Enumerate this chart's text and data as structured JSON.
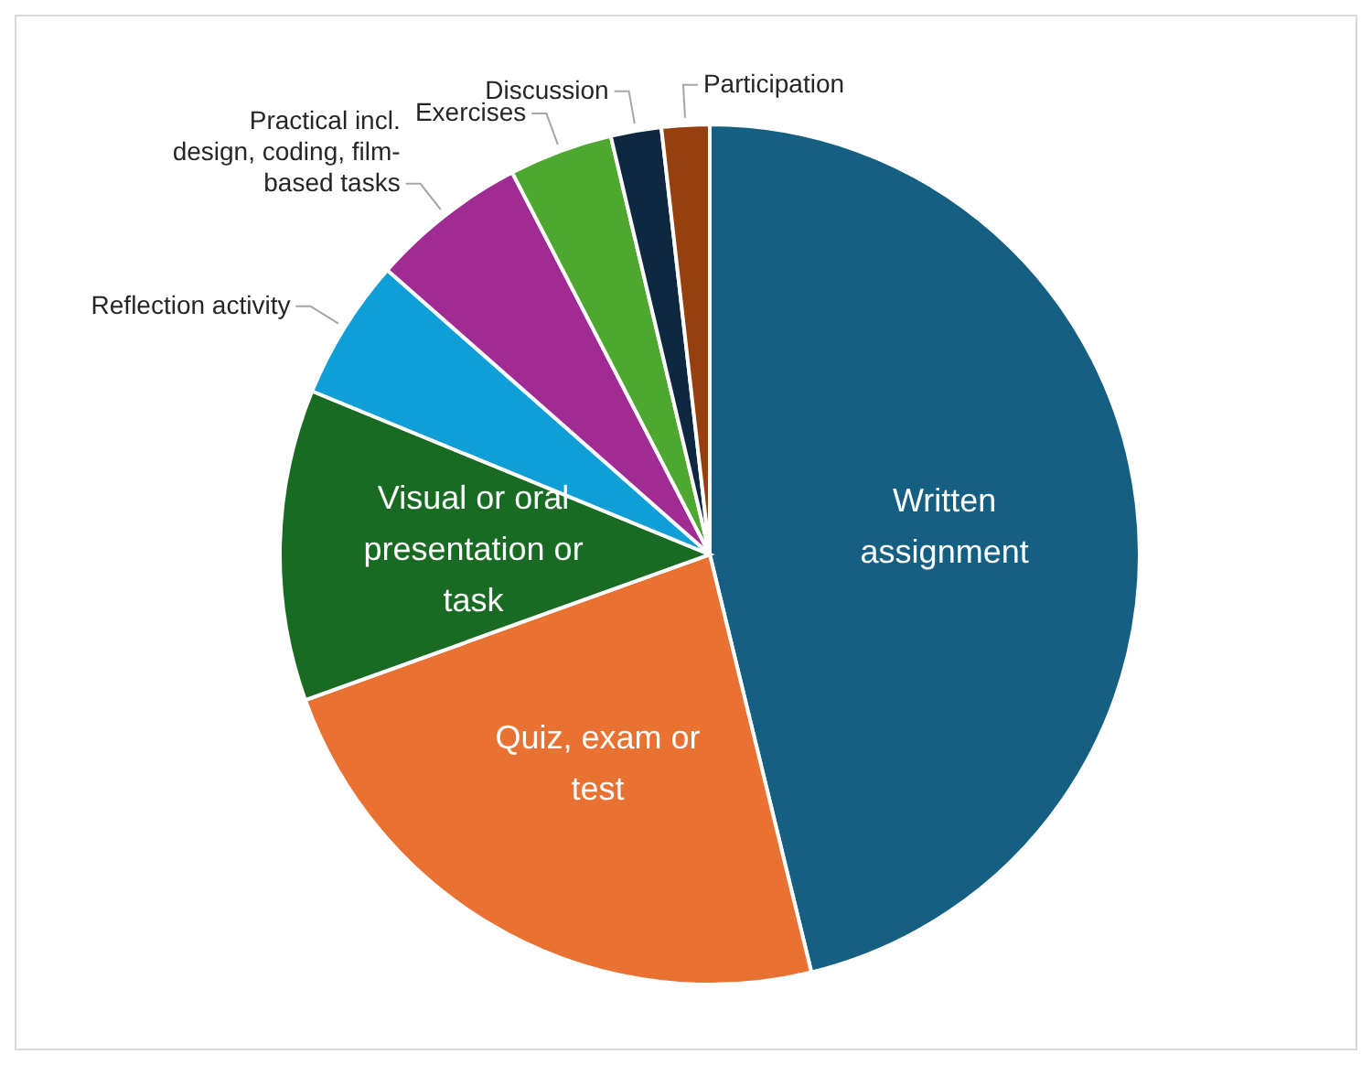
{
  "chart_data": {
    "type": "pie",
    "categories": [
      "Written assignment",
      "Quiz, exam or test",
      "Visual or oral presentation or task",
      "Reflection activity",
      "Practical incl. design, coding, film-based tasks",
      "Exercises",
      "Discussion",
      "Participation"
    ],
    "values": [
      46.2,
      23.3,
      11.7,
      5.3,
      5.9,
      3.9,
      1.9,
      1.8
    ],
    "colors": [
      "#156082",
      "#e97132",
      "#196b24",
      "#0f9ed5",
      "#a02b93",
      "#4ea72e",
      "#0e2841",
      "#97400f"
    ]
  }
}
